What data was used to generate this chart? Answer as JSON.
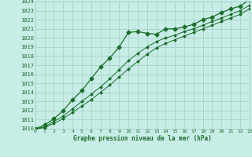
{
  "title": "Graphe pression niveau de la mer (hPa)",
  "bg_color": "#c8ece6",
  "grid_color": "#a0cfc8",
  "line_color": "#1a6e2a",
  "ylim": [
    1010,
    1024
  ],
  "xlim": [
    0,
    23
  ],
  "yticks": [
    1010,
    1011,
    1012,
    1013,
    1014,
    1015,
    1016,
    1017,
    1018,
    1019,
    1020,
    1021,
    1022,
    1023,
    1024
  ],
  "xticks": [
    0,
    1,
    2,
    3,
    4,
    5,
    6,
    7,
    8,
    9,
    10,
    11,
    12,
    13,
    14,
    15,
    16,
    17,
    18,
    19,
    20,
    21,
    22,
    23
  ],
  "line1": [
    1010.0,
    1010.4,
    1011.1,
    1012.0,
    1013.2,
    1014.2,
    1015.5,
    1016.8,
    1017.8,
    1019.0,
    1020.6,
    1020.7,
    1020.5,
    1020.4,
    1021.0,
    1021.0,
    1021.2,
    1021.5,
    1022.0,
    1022.3,
    1022.8,
    1023.2,
    1023.5,
    1024.2
  ],
  "line2": [
    1010.0,
    1010.2,
    1010.8,
    1011.4,
    1012.2,
    1013.0,
    1013.8,
    1014.6,
    1015.5,
    1016.5,
    1017.5,
    1018.3,
    1019.0,
    1019.6,
    1020.0,
    1020.3,
    1020.7,
    1021.0,
    1021.4,
    1021.8,
    1022.2,
    1022.6,
    1023.0,
    1023.6
  ],
  "line3": [
    1010.0,
    1010.1,
    1010.6,
    1011.1,
    1011.8,
    1012.5,
    1013.2,
    1014.0,
    1014.8,
    1015.7,
    1016.6,
    1017.4,
    1018.2,
    1018.9,
    1019.4,
    1019.8,
    1020.2,
    1020.6,
    1021.0,
    1021.4,
    1021.8,
    1022.2,
    1022.6,
    1023.2
  ]
}
